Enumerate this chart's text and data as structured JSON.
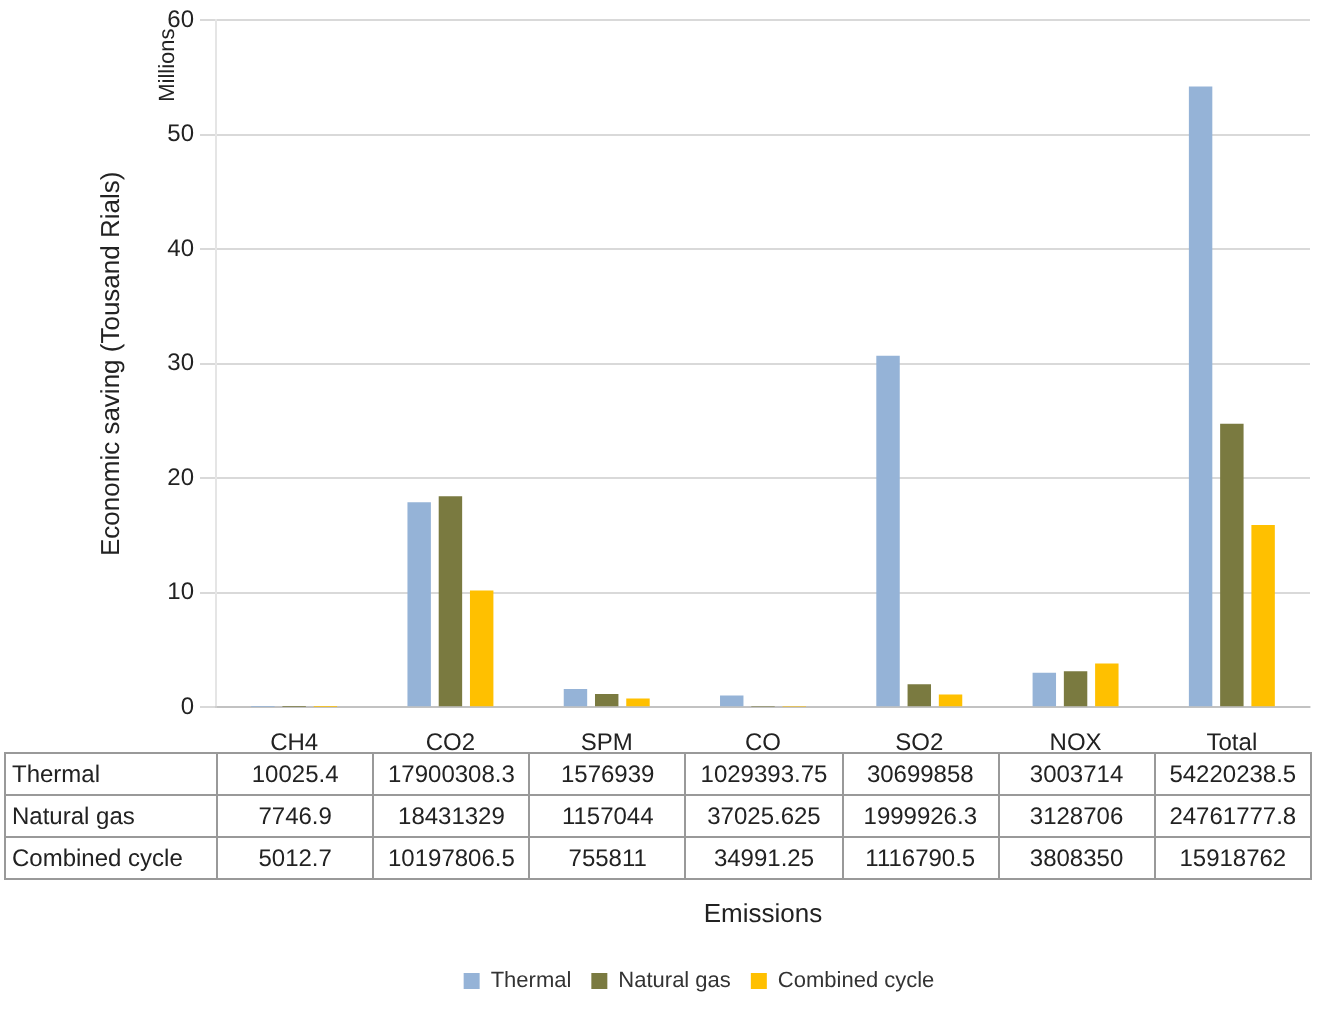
{
  "chart_data": {
    "type": "bar",
    "ylabel": "Economic saving (Tousand Rials)",
    "annotations": [
      "Millions",
      "Emissions",
      "10025.4",
      "17900308.3",
      "1576939",
      "1029393.75",
      "30699858",
      "3003714",
      "54220238.5",
      "7746.9",
      "18431329",
      "1157044",
      "37025.625",
      "1999926.3",
      "3128706",
      "24761777.8",
      "5012.7",
      "10197806.5",
      "755811",
      "34991.25",
      "1116790.5",
      "3808350",
      "15918762"
    ],
    "categories": [
      "CH4",
      "CO2",
      "SPM",
      "CO",
      "SO2",
      "NOX",
      "Total"
    ],
    "series": [
      {
        "name": "Thermal",
        "color": "#95b3d7",
        "values": [
          0.01,
          17.9,
          1.58,
          1.03,
          30.7,
          3.0,
          54.22
        ]
      },
      {
        "name": "Natural gas",
        "color": "#7a7a40",
        "values": [
          0.01,
          18.43,
          1.16,
          0.04,
          2.0,
          3.13,
          24.76
        ]
      },
      {
        "name": "Combined cycle",
        "color": "#ffc000",
        "values": [
          0.01,
          10.2,
          0.76,
          0.03,
          1.12,
          3.81,
          15.92
        ]
      }
    ],
    "ylim": [
      0,
      60
    ],
    "yticks": [
      0,
      10,
      20,
      30,
      40,
      50,
      60
    ],
    "grid": "y",
    "legend": "bottom"
  }
}
